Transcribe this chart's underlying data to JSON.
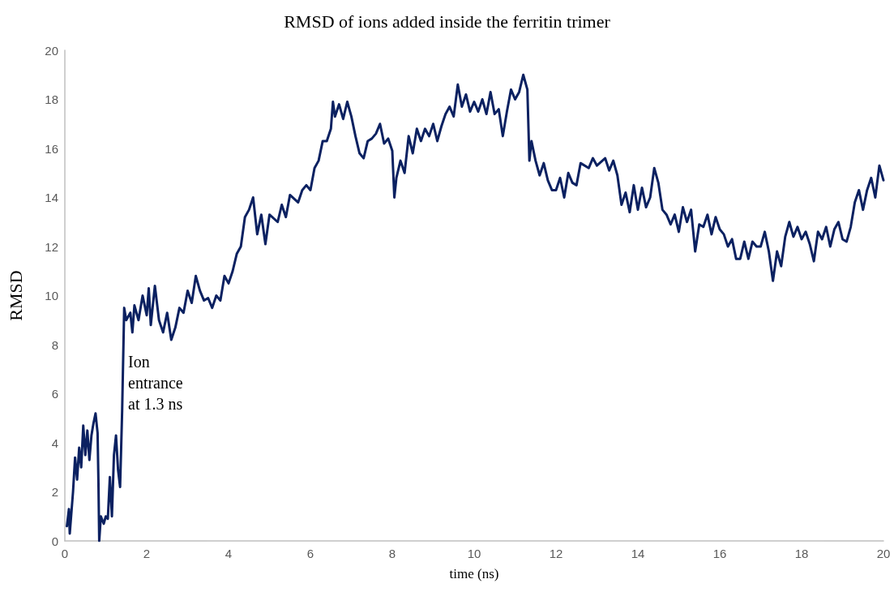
{
  "chart_data": {
    "type": "line",
    "title": "RMSD of ions added inside the ferritin trimer",
    "xlabel": "time (ns)",
    "ylabel": "RMSD",
    "annotations": [
      "Ion entrance at 1.3 ns"
    ],
    "xlim": [
      0,
      20
    ],
    "xticks": [
      0,
      2,
      4,
      6,
      8,
      10,
      12,
      14,
      16,
      18,
      20
    ],
    "ylim": [
      0,
      20
    ],
    "yticks": [
      0,
      2,
      4,
      6,
      8,
      10,
      12,
      14,
      16,
      18,
      20
    ],
    "grid": false,
    "marker": "none",
    "line_style": "solid",
    "series": [
      {
        "color": "#0b2161",
        "x": [
          0.05,
          0.1,
          0.12,
          0.2,
          0.25,
          0.3,
          0.35,
          0.4,
          0.45,
          0.5,
          0.55,
          0.6,
          0.65,
          0.7,
          0.75,
          0.8,
          0.82,
          0.84,
          0.88,
          0.95,
          1.0,
          1.05,
          1.1,
          1.15,
          1.2,
          1.25,
          1.3,
          1.35,
          1.4,
          1.45,
          1.5,
          1.6,
          1.65,
          1.7,
          1.8,
          1.9,
          2.0,
          2.05,
          2.1,
          2.2,
          2.3,
          2.4,
          2.5,
          2.6,
          2.7,
          2.8,
          2.9,
          3.0,
          3.1,
          3.2,
          3.3,
          3.4,
          3.5,
          3.6,
          3.7,
          3.8,
          3.9,
          4.0,
          4.1,
          4.2,
          4.3,
          4.4,
          4.5,
          4.6,
          4.7,
          4.8,
          4.9,
          5.0,
          5.2,
          5.3,
          5.4,
          5.5,
          5.7,
          5.8,
          5.9,
          6.0,
          6.1,
          6.2,
          6.3,
          6.4,
          6.5,
          6.55,
          6.6,
          6.7,
          6.8,
          6.9,
          7.0,
          7.1,
          7.2,
          7.3,
          7.4,
          7.5,
          7.6,
          7.7,
          7.8,
          7.9,
          8.0,
          8.05,
          8.1,
          8.2,
          8.3,
          8.4,
          8.5,
          8.6,
          8.7,
          8.8,
          8.9,
          9.0,
          9.1,
          9.2,
          9.3,
          9.4,
          9.5,
          9.6,
          9.7,
          9.8,
          9.9,
          10.0,
          10.1,
          10.2,
          10.3,
          10.4,
          10.5,
          10.6,
          10.7,
          10.8,
          10.9,
          11.0,
          11.1,
          11.2,
          11.3,
          11.35,
          11.4,
          11.5,
          11.6,
          11.7,
          11.8,
          11.9,
          12.0,
          12.1,
          12.2,
          12.3,
          12.4,
          12.5,
          12.6,
          12.8,
          12.9,
          13.0,
          13.2,
          13.3,
          13.4,
          13.5,
          13.6,
          13.7,
          13.8,
          13.9,
          14.0,
          14.1,
          14.2,
          14.3,
          14.4,
          14.5,
          14.6,
          14.7,
          14.8,
          14.9,
          15.0,
          15.1,
          15.2,
          15.3,
          15.4,
          15.5,
          15.6,
          15.7,
          15.8,
          15.9,
          16.0,
          16.1,
          16.2,
          16.3,
          16.4,
          16.5,
          16.6,
          16.7,
          16.8,
          16.9,
          17.0,
          17.1,
          17.2,
          17.3,
          17.4,
          17.5,
          17.6,
          17.7,
          17.8,
          17.9,
          18.0,
          18.1,
          18.2,
          18.3,
          18.4,
          18.5,
          18.6,
          18.7,
          18.8,
          18.9,
          19.0,
          19.1,
          19.2,
          19.3,
          19.4,
          19.5,
          19.6,
          19.7,
          19.8,
          19.9,
          20.0
        ],
        "values": [
          0.6,
          1.3,
          0.3,
          2.0,
          3.4,
          2.5,
          3.8,
          3.0,
          4.7,
          3.5,
          4.5,
          3.3,
          4.3,
          4.8,
          5.2,
          4.4,
          2.5,
          0.0,
          1.0,
          0.7,
          1.0,
          0.9,
          2.6,
          1.0,
          3.5,
          4.3,
          2.9,
          2.2,
          5.3,
          9.5,
          9.0,
          9.3,
          8.5,
          9.6,
          9.0,
          10.0,
          9.2,
          10.3,
          8.8,
          10.4,
          9.0,
          8.5,
          9.3,
          8.2,
          8.7,
          9.5,
          9.3,
          10.2,
          9.7,
          10.8,
          10.2,
          9.8,
          9.9,
          9.5,
          10.0,
          9.8,
          10.8,
          10.5,
          11.0,
          11.7,
          12.0,
          13.2,
          13.5,
          14.0,
          12.5,
          13.3,
          12.1,
          13.3,
          13.0,
          13.7,
          13.2,
          14.1,
          13.8,
          14.3,
          14.5,
          14.3,
          15.2,
          15.5,
          16.3,
          16.3,
          16.8,
          17.9,
          17.3,
          17.8,
          17.2,
          17.9,
          17.3,
          16.5,
          15.8,
          15.6,
          16.3,
          16.4,
          16.6,
          17.0,
          16.2,
          16.4,
          15.9,
          14.0,
          14.8,
          15.5,
          15.0,
          16.5,
          15.8,
          16.8,
          16.3,
          16.8,
          16.5,
          17.0,
          16.3,
          16.9,
          17.4,
          17.7,
          17.3,
          18.6,
          17.7,
          18.2,
          17.5,
          17.9,
          17.5,
          18.0,
          17.4,
          18.3,
          17.4,
          17.6,
          16.5,
          17.5,
          18.4,
          18.0,
          18.3,
          19.0,
          18.4,
          15.5,
          16.3,
          15.5,
          14.9,
          15.4,
          14.7,
          14.3,
          14.3,
          14.8,
          14.0,
          15.0,
          14.6,
          14.5,
          15.4,
          15.2,
          15.6,
          15.3,
          15.6,
          15.1,
          15.5,
          14.9,
          13.7,
          14.2,
          13.4,
          14.5,
          13.5,
          14.4,
          13.6,
          14.0,
          15.2,
          14.6,
          13.5,
          13.3,
          12.9,
          13.3,
          12.6,
          13.6,
          13.0,
          13.5,
          11.8,
          12.9,
          12.8,
          13.3,
          12.5,
          13.2,
          12.7,
          12.5,
          12.0,
          12.3,
          11.5,
          11.5,
          12.2,
          11.5,
          12.2,
          12.0,
          12.0,
          12.6,
          11.8,
          10.6,
          11.8,
          11.2,
          12.4,
          13.0,
          12.4,
          12.8,
          12.3,
          12.6,
          12.1,
          11.4,
          12.6,
          12.3,
          12.8,
          12.0,
          12.7,
          13.0,
          12.3,
          12.2,
          12.8,
          13.8,
          14.3,
          13.5,
          14.3,
          14.8,
          14.0,
          15.3,
          14.7
        ]
      }
    ]
  }
}
